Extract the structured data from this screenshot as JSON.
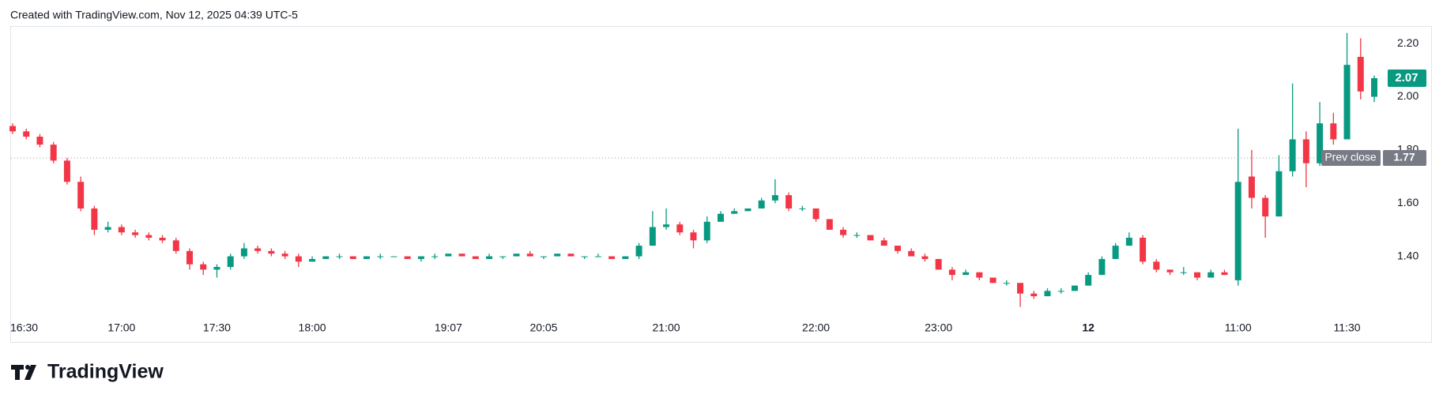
{
  "chart_data": {
    "type": "candlestick",
    "title": "Created with TradingView.com, Nov 12, 2025 04:39 UTC-5",
    "source": "TradingView",
    "up_color": "#089981",
    "down_color": "#f23645",
    "categories": [
      "16:30",
      null,
      null,
      null,
      null,
      null,
      null,
      null,
      "17:00",
      null,
      null,
      null,
      null,
      null,
      null,
      "17:30",
      null,
      null,
      null,
      null,
      null,
      null,
      "18:00",
      null,
      null,
      null,
      null,
      null,
      null,
      null,
      null,
      null,
      "19:07",
      null,
      null,
      null,
      null,
      null,
      null,
      "20:05",
      null,
      null,
      null,
      null,
      null,
      null,
      null,
      null,
      "21:00",
      null,
      null,
      null,
      null,
      null,
      null,
      null,
      null,
      null,
      null,
      "22:00",
      null,
      null,
      null,
      null,
      null,
      null,
      null,
      null,
      "23:00",
      null,
      null,
      null,
      null,
      null,
      null,
      null,
      null,
      null,
      null,
      "12",
      null,
      null,
      null,
      null,
      null,
      null,
      null,
      null,
      null,
      null,
      "11:00",
      null,
      null,
      null,
      null,
      null,
      null,
      null,
      "11:30",
      null,
      null
    ],
    "open": [
      1.89,
      1.87,
      1.85,
      1.82,
      1.76,
      1.68,
      1.58,
      1.5,
      1.51,
      1.49,
      1.48,
      1.47,
      1.46,
      1.42,
      1.37,
      1.35,
      1.36,
      1.4,
      1.43,
      1.42,
      1.41,
      1.4,
      1.38,
      1.39,
      1.4,
      1.4,
      1.39,
      1.4,
      1.4,
      1.4,
      1.39,
      1.4,
      1.4,
      1.41,
      1.4,
      1.39,
      1.4,
      1.4,
      1.41,
      1.4,
      1.4,
      1.41,
      1.4,
      1.4,
      1.4,
      1.39,
      1.4,
      1.44,
      1.51,
      1.52,
      1.49,
      1.46,
      1.53,
      1.56,
      1.57,
      1.58,
      1.61,
      1.63,
      1.58,
      1.58,
      1.54,
      1.5,
      1.48,
      1.48,
      1.46,
      1.44,
      1.42,
      1.4,
      1.39,
      1.35,
      1.33,
      1.34,
      1.32,
      1.3,
      1.3,
      1.26,
      1.25,
      1.27,
      1.27,
      1.29,
      1.33,
      1.39,
      1.44,
      1.47,
      1.38,
      1.35,
      1.34,
      1.34,
      1.32,
      1.34,
      1.31,
      1.7,
      1.62,
      1.55,
      1.72,
      1.84,
      1.75,
      1.9,
      1.84,
      2.15,
      2.0
    ],
    "high": [
      1.9,
      1.88,
      1.86,
      1.83,
      1.77,
      1.7,
      1.59,
      1.53,
      1.52,
      1.5,
      1.49,
      1.48,
      1.47,
      1.43,
      1.38,
      1.37,
      1.41,
      1.45,
      1.44,
      1.43,
      1.42,
      1.41,
      1.4,
      1.4,
      1.41,
      1.4,
      1.4,
      1.41,
      1.4,
      1.4,
      1.4,
      1.41,
      1.41,
      1.41,
      1.4,
      1.41,
      1.4,
      1.41,
      1.42,
      1.4,
      1.41,
      1.41,
      1.4,
      1.41,
      1.4,
      1.4,
      1.45,
      1.57,
      1.58,
      1.53,
      1.5,
      1.55,
      1.57,
      1.58,
      1.58,
      1.62,
      1.69,
      1.64,
      1.59,
      1.58,
      1.54,
      1.51,
      1.49,
      1.48,
      1.47,
      1.44,
      1.43,
      1.41,
      1.39,
      1.36,
      1.35,
      1.34,
      1.32,
      1.31,
      1.3,
      1.27,
      1.28,
      1.28,
      1.29,
      1.34,
      1.4,
      1.45,
      1.49,
      1.48,
      1.39,
      1.35,
      1.36,
      1.34,
      1.35,
      1.35,
      1.88,
      1.8,
      1.63,
      1.78,
      2.05,
      1.87,
      1.98,
      1.94,
      2.24,
      2.22,
      2.08
    ],
    "low": [
      1.86,
      1.84,
      1.81,
      1.75,
      1.67,
      1.57,
      1.48,
      1.49,
      1.48,
      1.47,
      1.46,
      1.45,
      1.41,
      1.35,
      1.33,
      1.32,
      1.35,
      1.39,
      1.41,
      1.4,
      1.39,
      1.36,
      1.38,
      1.39,
      1.39,
      1.39,
      1.39,
      1.39,
      1.4,
      1.39,
      1.38,
      1.39,
      1.4,
      1.4,
      1.39,
      1.39,
      1.39,
      1.4,
      1.4,
      1.39,
      1.4,
      1.4,
      1.39,
      1.4,
      1.39,
      1.39,
      1.39,
      1.44,
      1.5,
      1.48,
      1.43,
      1.45,
      1.53,
      1.56,
      1.57,
      1.58,
      1.6,
      1.57,
      1.57,
      1.53,
      1.5,
      1.47,
      1.47,
      1.46,
      1.44,
      1.41,
      1.4,
      1.38,
      1.35,
      1.31,
      1.33,
      1.31,
      1.3,
      1.29,
      1.21,
      1.24,
      1.25,
      1.26,
      1.27,
      1.29,
      1.33,
      1.39,
      1.44,
      1.37,
      1.34,
      1.33,
      1.33,
      1.31,
      1.32,
      1.33,
      1.29,
      1.58,
      1.47,
      1.55,
      1.7,
      1.66,
      1.74,
      1.82,
      1.84,
      1.99,
      1.98
    ],
    "close": [
      1.87,
      1.85,
      1.82,
      1.76,
      1.68,
      1.58,
      1.5,
      1.51,
      1.49,
      1.48,
      1.47,
      1.46,
      1.42,
      1.37,
      1.35,
      1.36,
      1.4,
      1.43,
      1.42,
      1.41,
      1.4,
      1.38,
      1.39,
      1.4,
      1.4,
      1.39,
      1.4,
      1.4,
      1.4,
      1.39,
      1.4,
      1.4,
      1.41,
      1.4,
      1.39,
      1.4,
      1.4,
      1.41,
      1.4,
      1.4,
      1.41,
      1.4,
      1.4,
      1.4,
      1.39,
      1.4,
      1.44,
      1.51,
      1.52,
      1.49,
      1.46,
      1.53,
      1.56,
      1.57,
      1.58,
      1.61,
      1.63,
      1.58,
      1.58,
      1.54,
      1.5,
      1.48,
      1.48,
      1.46,
      1.44,
      1.42,
      1.4,
      1.39,
      1.35,
      1.33,
      1.34,
      1.32,
      1.3,
      1.3,
      1.26,
      1.25,
      1.27,
      1.27,
      1.29,
      1.33,
      1.39,
      1.44,
      1.47,
      1.38,
      1.35,
      1.34,
      1.34,
      1.32,
      1.34,
      1.33,
      1.68,
      1.62,
      1.55,
      1.72,
      1.84,
      1.75,
      1.9,
      1.84,
      2.12,
      2.02,
      2.07
    ],
    "prev_close": {
      "label": "Prev close",
      "value": 1.77
    },
    "ylim": [
      1.17,
      2.26
    ],
    "yticks": [
      {
        "value": 1.4,
        "label": "1.40"
      },
      {
        "value": 1.6,
        "label": "1.60"
      },
      {
        "value": 1.8,
        "label": "1.80"
      },
      {
        "value": 2.0,
        "label": "2.00"
      },
      {
        "value": 2.2,
        "label": "2.20"
      }
    ],
    "grid": false
  }
}
